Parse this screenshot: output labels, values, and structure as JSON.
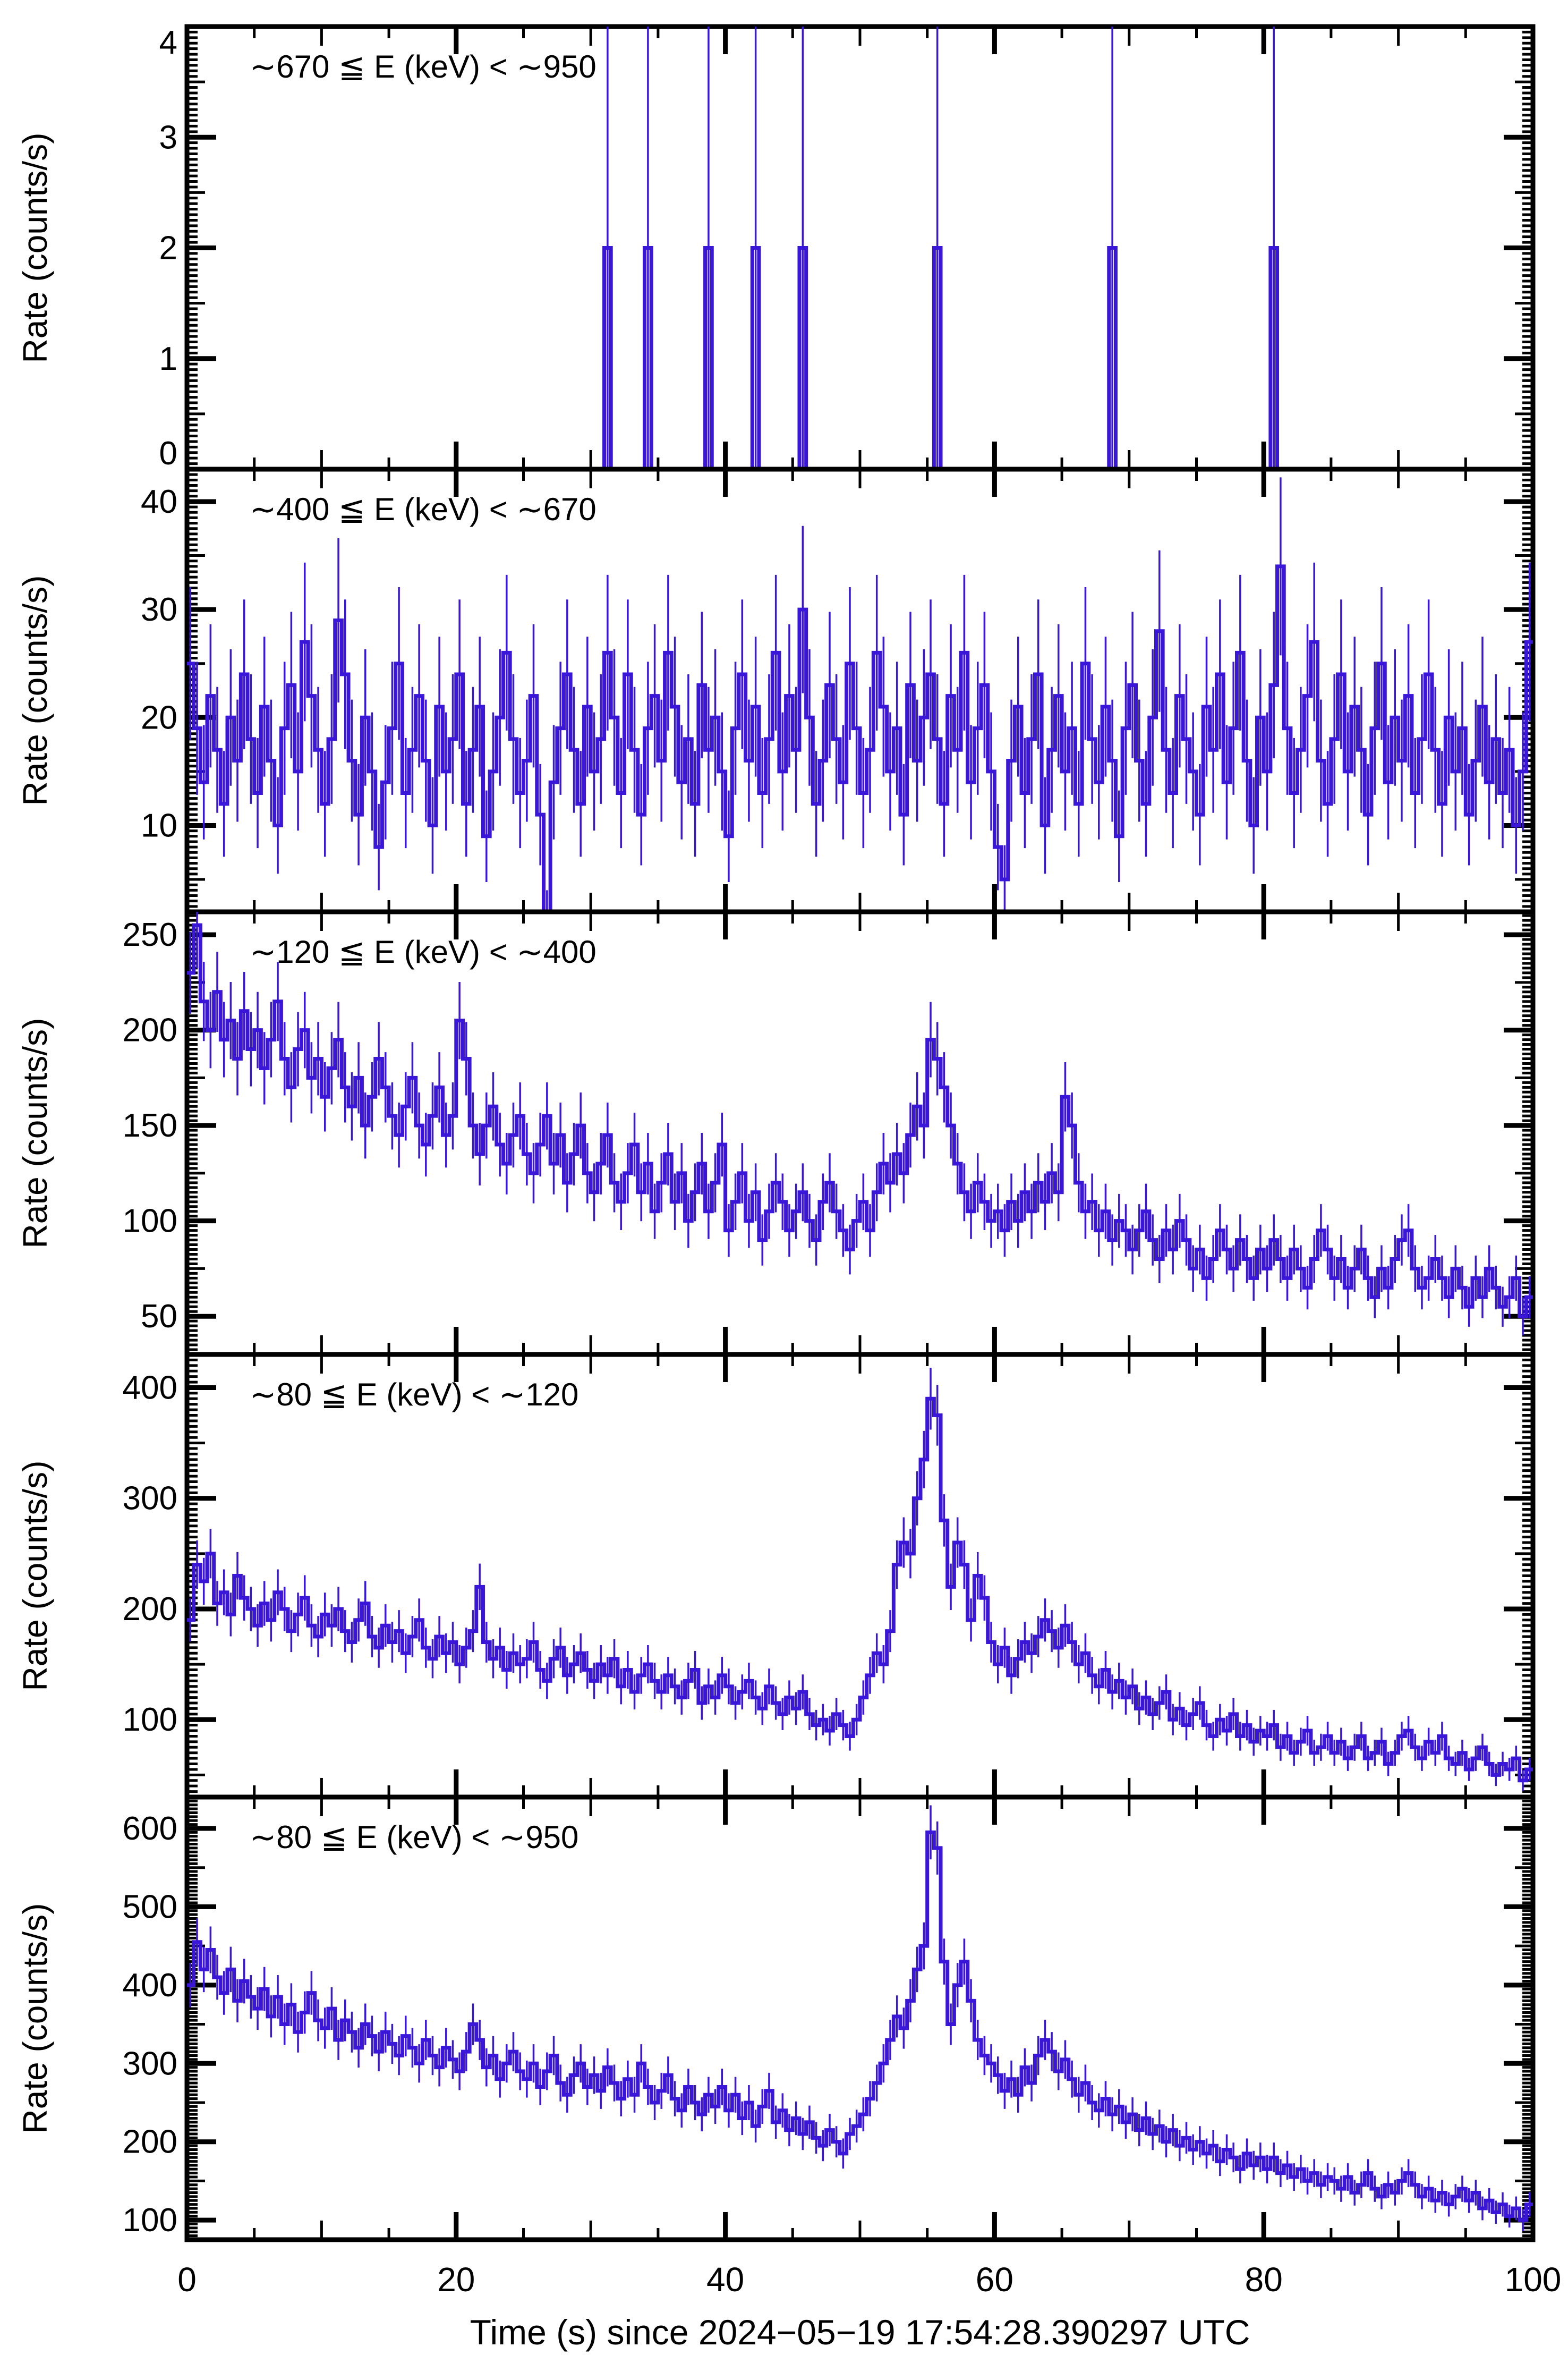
{
  "figure": {
    "background": "#ffffff",
    "axis_color": "#000000",
    "data_color": "#3a16d9",
    "xlabel": "Time (s) since 2024−05−19 17:54:28.390297 UTC",
    "ylabel": "Rate (counts/s)"
  },
  "chart_data": {
    "type": "line",
    "style": "step-histogram-with-poisson-errors",
    "color": "#3a16d9",
    "bin_width_s": 0.5,
    "num_bins": 200,
    "error_model": "sqrt(rate/bin_width)",
    "x_axis": {
      "label": "Time (s) since 2024−05−19 17:54:28.390297 UTC",
      "min": 0,
      "max": 100,
      "major_ticks": [
        0,
        20,
        40,
        60,
        80,
        100
      ],
      "mid_tick_step": 10,
      "minor_tick_step": 5
    },
    "panels": [
      {
        "title": "∼670 ≦ E (keV) < ∼950",
        "ylabel": "Rate (counts/s)",
        "ylim": [
          0,
          4
        ],
        "yticks": [
          0,
          1,
          2,
          3,
          4
        ],
        "y_minor_step": 0.05,
        "baseline_value": 0,
        "spikes": [
          {
            "t": 31,
            "v": 2
          },
          {
            "t": 34,
            "v": 2
          },
          {
            "t": 38.5,
            "v": 2
          },
          {
            "t": 42,
            "v": 2
          },
          {
            "t": 45.5,
            "v": 2
          },
          {
            "t": 55.5,
            "v": 2
          },
          {
            "t": 68.5,
            "v": 2
          },
          {
            "t": 80.5,
            "v": 2
          }
        ]
      },
      {
        "title": "∼400 ≦ E (keV) < ∼670",
        "ylabel": "Rate (counts/s)",
        "ylim": [
          2,
          43
        ],
        "yticks": [
          10,
          20,
          30,
          40
        ],
        "y_minor_step": 0.5,
        "values": [
          25,
          19,
          14,
          22,
          17,
          12,
          20,
          16,
          24,
          18,
          13,
          21,
          16,
          10,
          19,
          23,
          15,
          27,
          22,
          17,
          12,
          18,
          29,
          24,
          16,
          11,
          20,
          15,
          8,
          14,
          19,
          25,
          13,
          17,
          22,
          16,
          10,
          21,
          15,
          18,
          24,
          12,
          17,
          21,
          9,
          15,
          20,
          26,
          18,
          13,
          16,
          22,
          11,
          2,
          14,
          19,
          24,
          17,
          12,
          21,
          15,
          18,
          26,
          20,
          13,
          24,
          17,
          11,
          19,
          22,
          16,
          26,
          21,
          14,
          18,
          12,
          23,
          17,
          20,
          15,
          9,
          19,
          24,
          16,
          21,
          13,
          18,
          26,
          15,
          22,
          17,
          30,
          20,
          12,
          16,
          23,
          18,
          14,
          25,
          19,
          13,
          17,
          26,
          21,
          15,
          19,
          11,
          23,
          16,
          20,
          24,
          18,
          12,
          22,
          17,
          26,
          14,
          19,
          23,
          15,
          8,
          5,
          16,
          21,
          13,
          18,
          24,
          10,
          17,
          22,
          15,
          19,
          12,
          25,
          18,
          14,
          21,
          16,
          9,
          19,
          23,
          16,
          12,
          20,
          28,
          17,
          13,
          22,
          18,
          15,
          11,
          21,
          17,
          24,
          14,
          19,
          26,
          16,
          10,
          20,
          15,
          23,
          34,
          19,
          13,
          17,
          22,
          27,
          16,
          12,
          18,
          24,
          15,
          21,
          17,
          11,
          19,
          25,
          14,
          20,
          16,
          22,
          13,
          18,
          24,
          17,
          12,
          20,
          15,
          19,
          11,
          16,
          21,
          14,
          18,
          13,
          17,
          10,
          15,
          27
        ]
      },
      {
        "title": "∼120 ≦ E (keV) < ∼400",
        "ylabel": "Rate (counts/s)",
        "ylim": [
          30,
          262
        ],
        "yticks": [
          50,
          100,
          150,
          200,
          250
        ],
        "y_minor_step": 2.5,
        "values": [
          230,
          255,
          215,
          200,
          220,
          195,
          205,
          185,
          210,
          190,
          200,
          180,
          195,
          215,
          185,
          170,
          190,
          200,
          175,
          185,
          165,
          180,
          195,
          170,
          160,
          175,
          150,
          165,
          185,
          170,
          155,
          145,
          160,
          175,
          150,
          140,
          155,
          170,
          145,
          155,
          205,
          185,
          150,
          135,
          150,
          160,
          140,
          130,
          145,
          155,
          135,
          125,
          140,
          155,
          130,
          145,
          120,
          135,
          150,
          125,
          115,
          130,
          145,
          120,
          110,
          125,
          140,
          115,
          130,
          105,
          120,
          135,
          110,
          125,
          100,
          115,
          130,
          105,
          120,
          140,
          95,
          110,
          125,
          100,
          115,
          90,
          105,
          120,
          110,
          95,
          105,
          115,
          100,
          90,
          110,
          120,
          105,
          95,
          85,
          100,
          110,
          95,
          115,
          130,
          120,
          135,
          125,
          145,
          160,
          150,
          195,
          185,
          170,
          150,
          130,
          115,
          105,
          120,
          110,
          100,
          105,
          95,
          110,
          100,
          115,
          105,
          120,
          110,
          125,
          115,
          165,
          150,
          120,
          105,
          110,
          95,
          105,
          90,
          100,
          95,
          85,
          95,
          105,
          90,
          80,
          95,
          85,
          100,
          90,
          75,
          85,
          70,
          80,
          95,
          85,
          75,
          90,
          80,
          70,
          85,
          75,
          90,
          80,
          70,
          85,
          75,
          65,
          80,
          95,
          85,
          70,
          80,
          65,
          75,
          85,
          70,
          60,
          75,
          65,
          80,
          90,
          95,
          75,
          65,
          70,
          80,
          70,
          60,
          75,
          65,
          55,
          70,
          60,
          75,
          65,
          55,
          60,
          70,
          50,
          60
        ]
      },
      {
        "title": "∼80 ≦ E (keV) < ∼120",
        "ylabel": "Rate (counts/s)",
        "ylim": [
          30,
          430
        ],
        "yticks": [
          100,
          200,
          300,
          400
        ],
        "y_minor_step": 5,
        "values": [
          190,
          240,
          225,
          250,
          205,
          215,
          195,
          230,
          210,
          200,
          185,
          205,
          190,
          215,
          200,
          180,
          195,
          210,
          185,
          175,
          195,
          185,
          200,
          180,
          170,
          190,
          205,
          175,
          165,
          185,
          170,
          180,
          160,
          175,
          190,
          165,
          155,
          175,
          160,
          170,
          150,
          165,
          180,
          220,
          170,
          155,
          165,
          145,
          160,
          150,
          155,
          170,
          145,
          135,
          155,
          165,
          140,
          150,
          160,
          145,
          135,
          150,
          140,
          155,
          130,
          145,
          125,
          140,
          150,
          135,
          125,
          140,
          130,
          120,
          135,
          145,
          115,
          130,
          120,
          140,
          130,
          115,
          125,
          135,
          120,
          110,
          130,
          115,
          105,
          120,
          110,
          125,
          105,
          95,
          100,
          90,
          105,
          95,
          85,
          100,
          120,
          140,
          160,
          150,
          180,
          240,
          260,
          250,
          300,
          335,
          390,
          375,
          280,
          220,
          260,
          240,
          190,
          230,
          210,
          170,
          150,
          165,
          140,
          155,
          170,
          160,
          175,
          190,
          180,
          165,
          185,
          170,
          150,
          160,
          140,
          130,
          145,
          125,
          135,
          120,
          130,
          110,
          120,
          105,
          115,
          125,
          100,
          110,
          95,
          105,
          115,
          95,
          85,
          100,
          90,
          105,
          85,
          95,
          80,
          90,
          85,
          95,
          75,
          85,
          70,
          80,
          90,
          70,
          75,
          85,
          70,
          80,
          65,
          75,
          85,
          65,
          70,
          80,
          60,
          70,
          85,
          90,
          75,
          65,
          80,
          70,
          85,
          65,
          60,
          70,
          55,
          65,
          75,
          60,
          50,
          60,
          55,
          65,
          45,
          55
        ]
      },
      {
        "title": "∼80 ≦ E (keV) < ∼950",
        "ylabel": "Rate (counts/s)",
        "ylim": [
          75,
          640
        ],
        "yticks": [
          100,
          200,
          300,
          400,
          500,
          600
        ],
        "y_minor_step": 5,
        "values": [
          400,
          455,
          420,
          445,
          410,
          390,
          420,
          380,
          405,
          385,
          370,
          395,
          360,
          385,
          350,
          375,
          340,
          365,
          390,
          355,
          345,
          370,
          330,
          355,
          340,
          320,
          350,
          335,
          315,
          340,
          325,
          310,
          335,
          320,
          300,
          330,
          310,
          295,
          320,
          305,
          290,
          315,
          350,
          330,
          295,
          310,
          280,
          300,
          315,
          290,
          280,
          300,
          270,
          290,
          310,
          275,
          260,
          285,
          300,
          270,
          285,
          265,
          295,
          275,
          255,
          280,
          260,
          300,
          270,
          250,
          265,
          285,
          255,
          240,
          270,
          250,
          235,
          260,
          245,
          270,
          240,
          260,
          230,
          250,
          220,
          245,
          265,
          225,
          240,
          215,
          230,
          210,
          225,
          205,
          195,
          215,
          200,
          185,
          210,
          220,
          235,
          255,
          275,
          300,
          330,
          360,
          345,
          380,
          420,
          450,
          595,
          575,
          430,
          350,
          400,
          430,
          380,
          330,
          310,
          300,
          285,
          265,
          280,
          260,
          295,
          275,
          310,
          330,
          315,
          290,
          305,
          280,
          260,
          275,
          250,
          240,
          255,
          235,
          245,
          225,
          235,
          215,
          230,
          210,
          220,
          200,
          215,
          195,
          205,
          190,
          200,
          185,
          195,
          175,
          190,
          180,
          165,
          185,
          170,
          180,
          165,
          180,
          160,
          170,
          155,
          165,
          150,
          160,
          145,
          155,
          150,
          140,
          155,
          135,
          145,
          160,
          140,
          130,
          145,
          135,
          150,
          160,
          145,
          130,
          140,
          125,
          135,
          120,
          130,
          140,
          125,
          135,
          115,
          125,
          110,
          120,
          105,
          115,
          100,
          120
        ]
      }
    ]
  }
}
